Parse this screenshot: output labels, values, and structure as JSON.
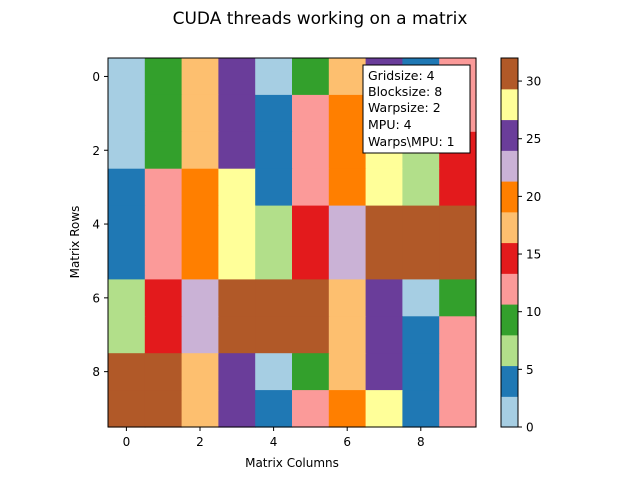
{
  "chart_data": {
    "type": "heatmap",
    "title": "CUDA threads working on a matrix",
    "xlabel": "Matrix Columns",
    "ylabel": "Matrix Rows",
    "x_ticks": [
      "0",
      "2",
      "4",
      "6",
      "8"
    ],
    "y_ticks": [
      "0",
      "2",
      "4",
      "6",
      "8"
    ],
    "x_tick_values": [
      0,
      2,
      4,
      6,
      8
    ],
    "y_tick_values": [
      0,
      2,
      4,
      6,
      8
    ],
    "rows": 10,
    "cols": 10,
    "matrix": [
      [
        1,
        9,
        17,
        25,
        1,
        9,
        17,
        25,
        5,
        13
      ],
      [
        1,
        9,
        17,
        25,
        5,
        13,
        21,
        25,
        5,
        13
      ],
      [
        1,
        9,
        17,
        25,
        5,
        13,
        21,
        29,
        7,
        15
      ],
      [
        5,
        13,
        21,
        29,
        5,
        13,
        21,
        29,
        7,
        15
      ],
      [
        5,
        13,
        21,
        29,
        7,
        15,
        23,
        31,
        31,
        31
      ],
      [
        5,
        13,
        21,
        29,
        7,
        15,
        23,
        31,
        31,
        31
      ],
      [
        7,
        15,
        23,
        31,
        31,
        31,
        17,
        25,
        1,
        9
      ],
      [
        7,
        15,
        23,
        31,
        31,
        31,
        17,
        25,
        5,
        13
      ],
      [
        31,
        31,
        17,
        25,
        1,
        9,
        17,
        25,
        5,
        13
      ],
      [
        31,
        31,
        17,
        25,
        5,
        13,
        21,
        29,
        5,
        13
      ]
    ],
    "vmin": 0,
    "vmax": 32,
    "colormap": [
      "#a6cee3",
      "#1f78b4",
      "#b2df8a",
      "#33a02c",
      "#fb9a99",
      "#e31a1c",
      "#fdbf6f",
      "#ff7f00",
      "#cab2d6",
      "#6a3d9a",
      "#ffff99",
      "#b15928"
    ],
    "colorbar_ticks": [
      "0",
      "5",
      "10",
      "15",
      "20",
      "25",
      "30"
    ],
    "colorbar_tick_values": [
      0,
      5,
      10,
      15,
      20,
      25,
      30
    ],
    "annotation": [
      "Gridsize: 4",
      "Blocksize: 8",
      "Warpsize: 2",
      "MPU: 4",
      "Warps\\MPU: 1"
    ],
    "grid": false
  }
}
